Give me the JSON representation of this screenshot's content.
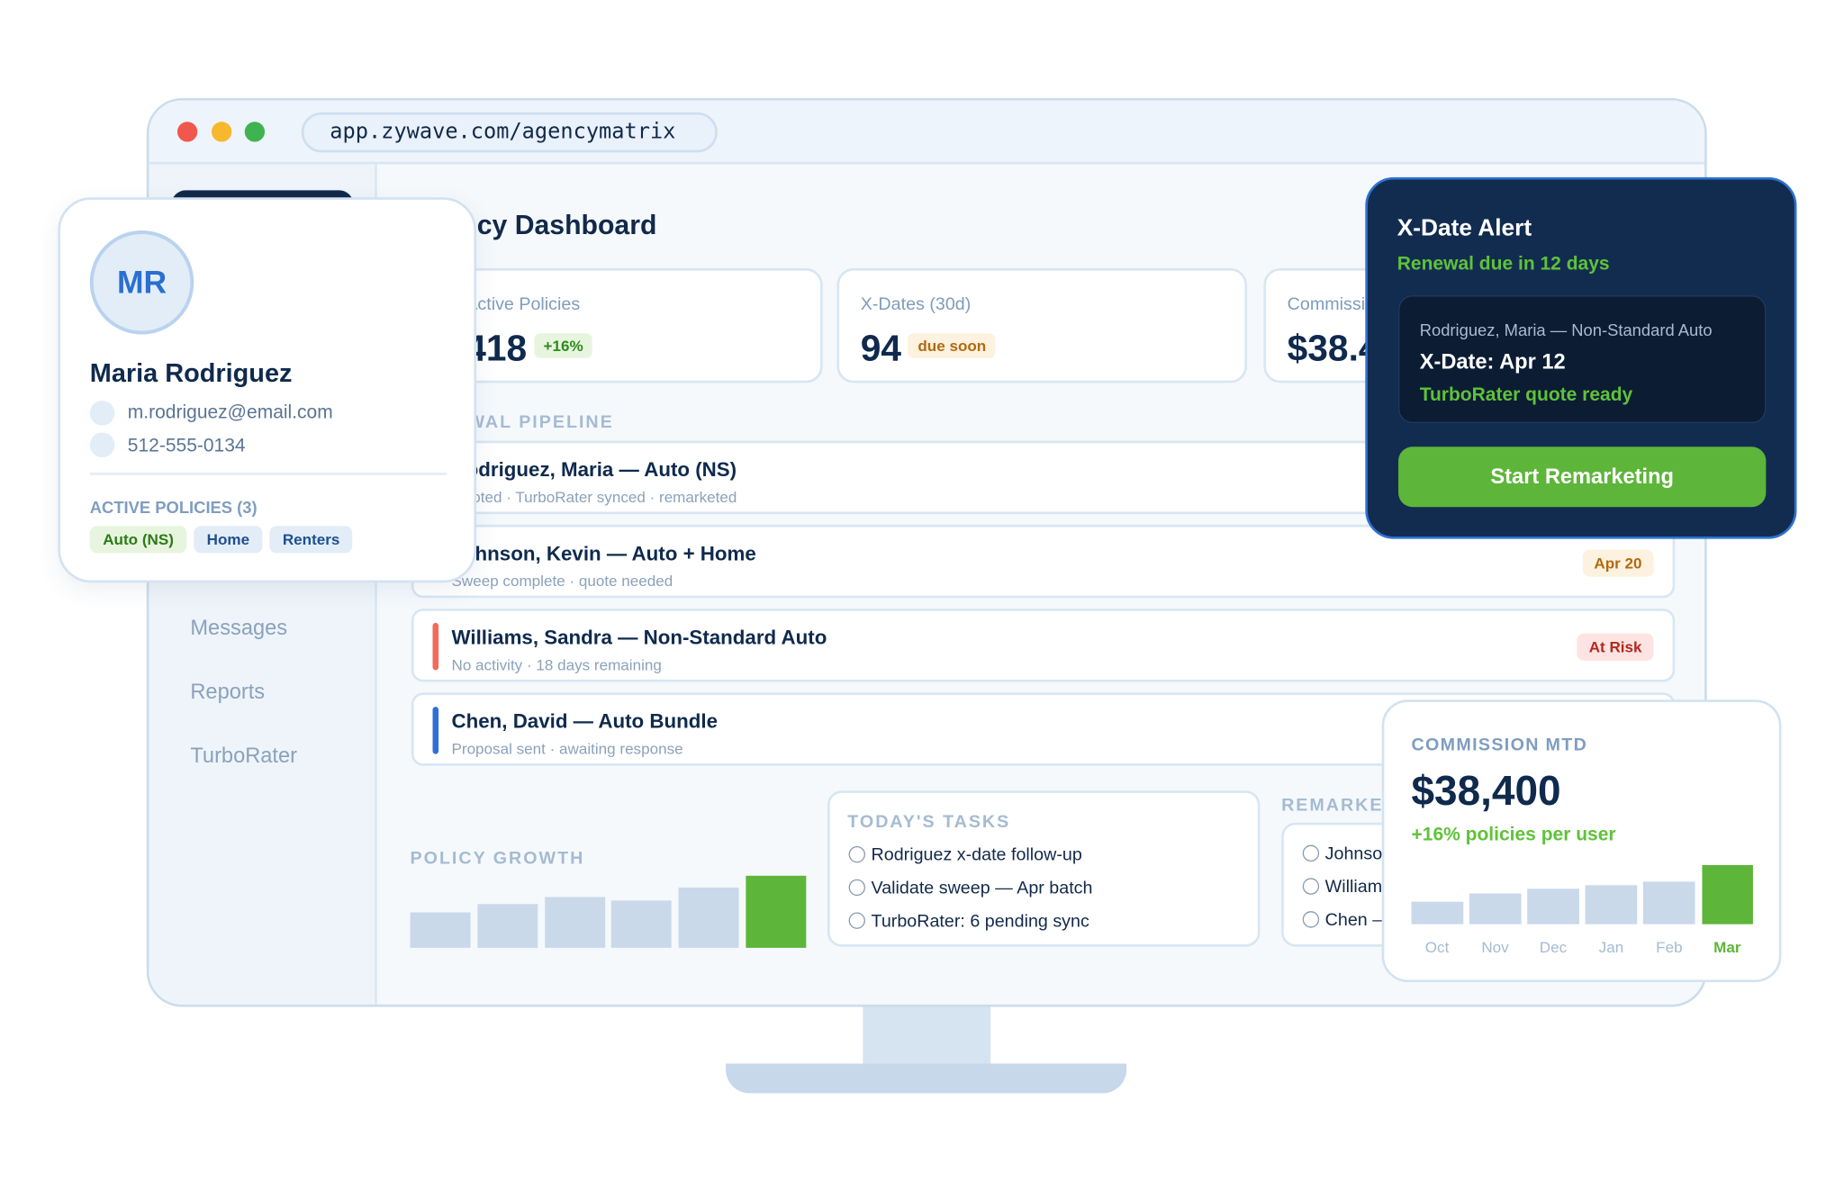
{
  "browser": {
    "url": "app.zywave.com/agencymatrix"
  },
  "sidebar": {
    "items": [
      {
        "label": "Messages"
      },
      {
        "label": "Reports"
      },
      {
        "label": "TurboRater"
      }
    ]
  },
  "main": {
    "title": "Agency Dashboard",
    "stats": [
      {
        "label": "Active Policies",
        "value": "418",
        "chip": "+16%"
      },
      {
        "label": "X-Dates (30d)",
        "value": "94",
        "chip": "due soon"
      },
      {
        "label": "Commission",
        "value": "$38.4K"
      }
    ],
    "pipeline": {
      "label": "RENEWAL PIPELINE",
      "rows": [
        {
          "name": "Rodriguez, Maria — Auto (NS)",
          "sub": "Quoted · TurboRater synced · remarketed"
        },
        {
          "name": "Johnson, Kevin — Auto + Home",
          "sub": "Sweep complete · quote needed",
          "badge": "Apr 20"
        },
        {
          "name": "Williams, Sandra — Non-Standard Auto",
          "sub": "No activity · 18 days remaining",
          "badge": "At Risk"
        },
        {
          "name": "Chen, David — Auto Bundle",
          "sub": "Proposal sent · awaiting response"
        }
      ]
    },
    "policy_growth": {
      "label": "POLICY GROWTH",
      "values": [
        30,
        37,
        43,
        40,
        51,
        61
      ]
    },
    "tasks": {
      "label": "TODAY'S TASKS",
      "items": [
        "Rodriguez x-date follow-up",
        "Validate sweep — Apr batch",
        "TurboRater: 6 pending sync"
      ]
    },
    "remarketing": {
      "label": "REMARKETING",
      "items": [
        "Johnson",
        "Williams",
        "Chen —"
      ]
    }
  },
  "profile": {
    "initials": "MR",
    "name": "Maria Rodriguez",
    "email": "m.rodriguez@email.com",
    "phone": "512-555-0134",
    "policies_label": "ACTIVE POLICIES (3)",
    "tags": [
      "Auto (NS)",
      "Home",
      "Renters"
    ]
  },
  "alert": {
    "title": "X-Date Alert",
    "subtitle": "Renewal due in 12 days",
    "client": "Rodriguez, Maria — Non-Standard Auto",
    "xdate": "X-Date: Apr 12",
    "status": "TurboRater quote ready",
    "button": "Start Remarketing"
  },
  "commission": {
    "label": "COMMISSION MTD",
    "value": "$38,400",
    "delta": "+16% policies per user",
    "months": [
      "Oct",
      "Nov",
      "Dec",
      "Jan",
      "Feb",
      "Mar"
    ],
    "values": [
      19,
      26,
      30,
      33,
      36,
      50
    ]
  },
  "colors": {
    "navy": "#122c50",
    "green": "#5db53a",
    "risk": "#f26b5b",
    "info": "#2f6fd6"
  }
}
